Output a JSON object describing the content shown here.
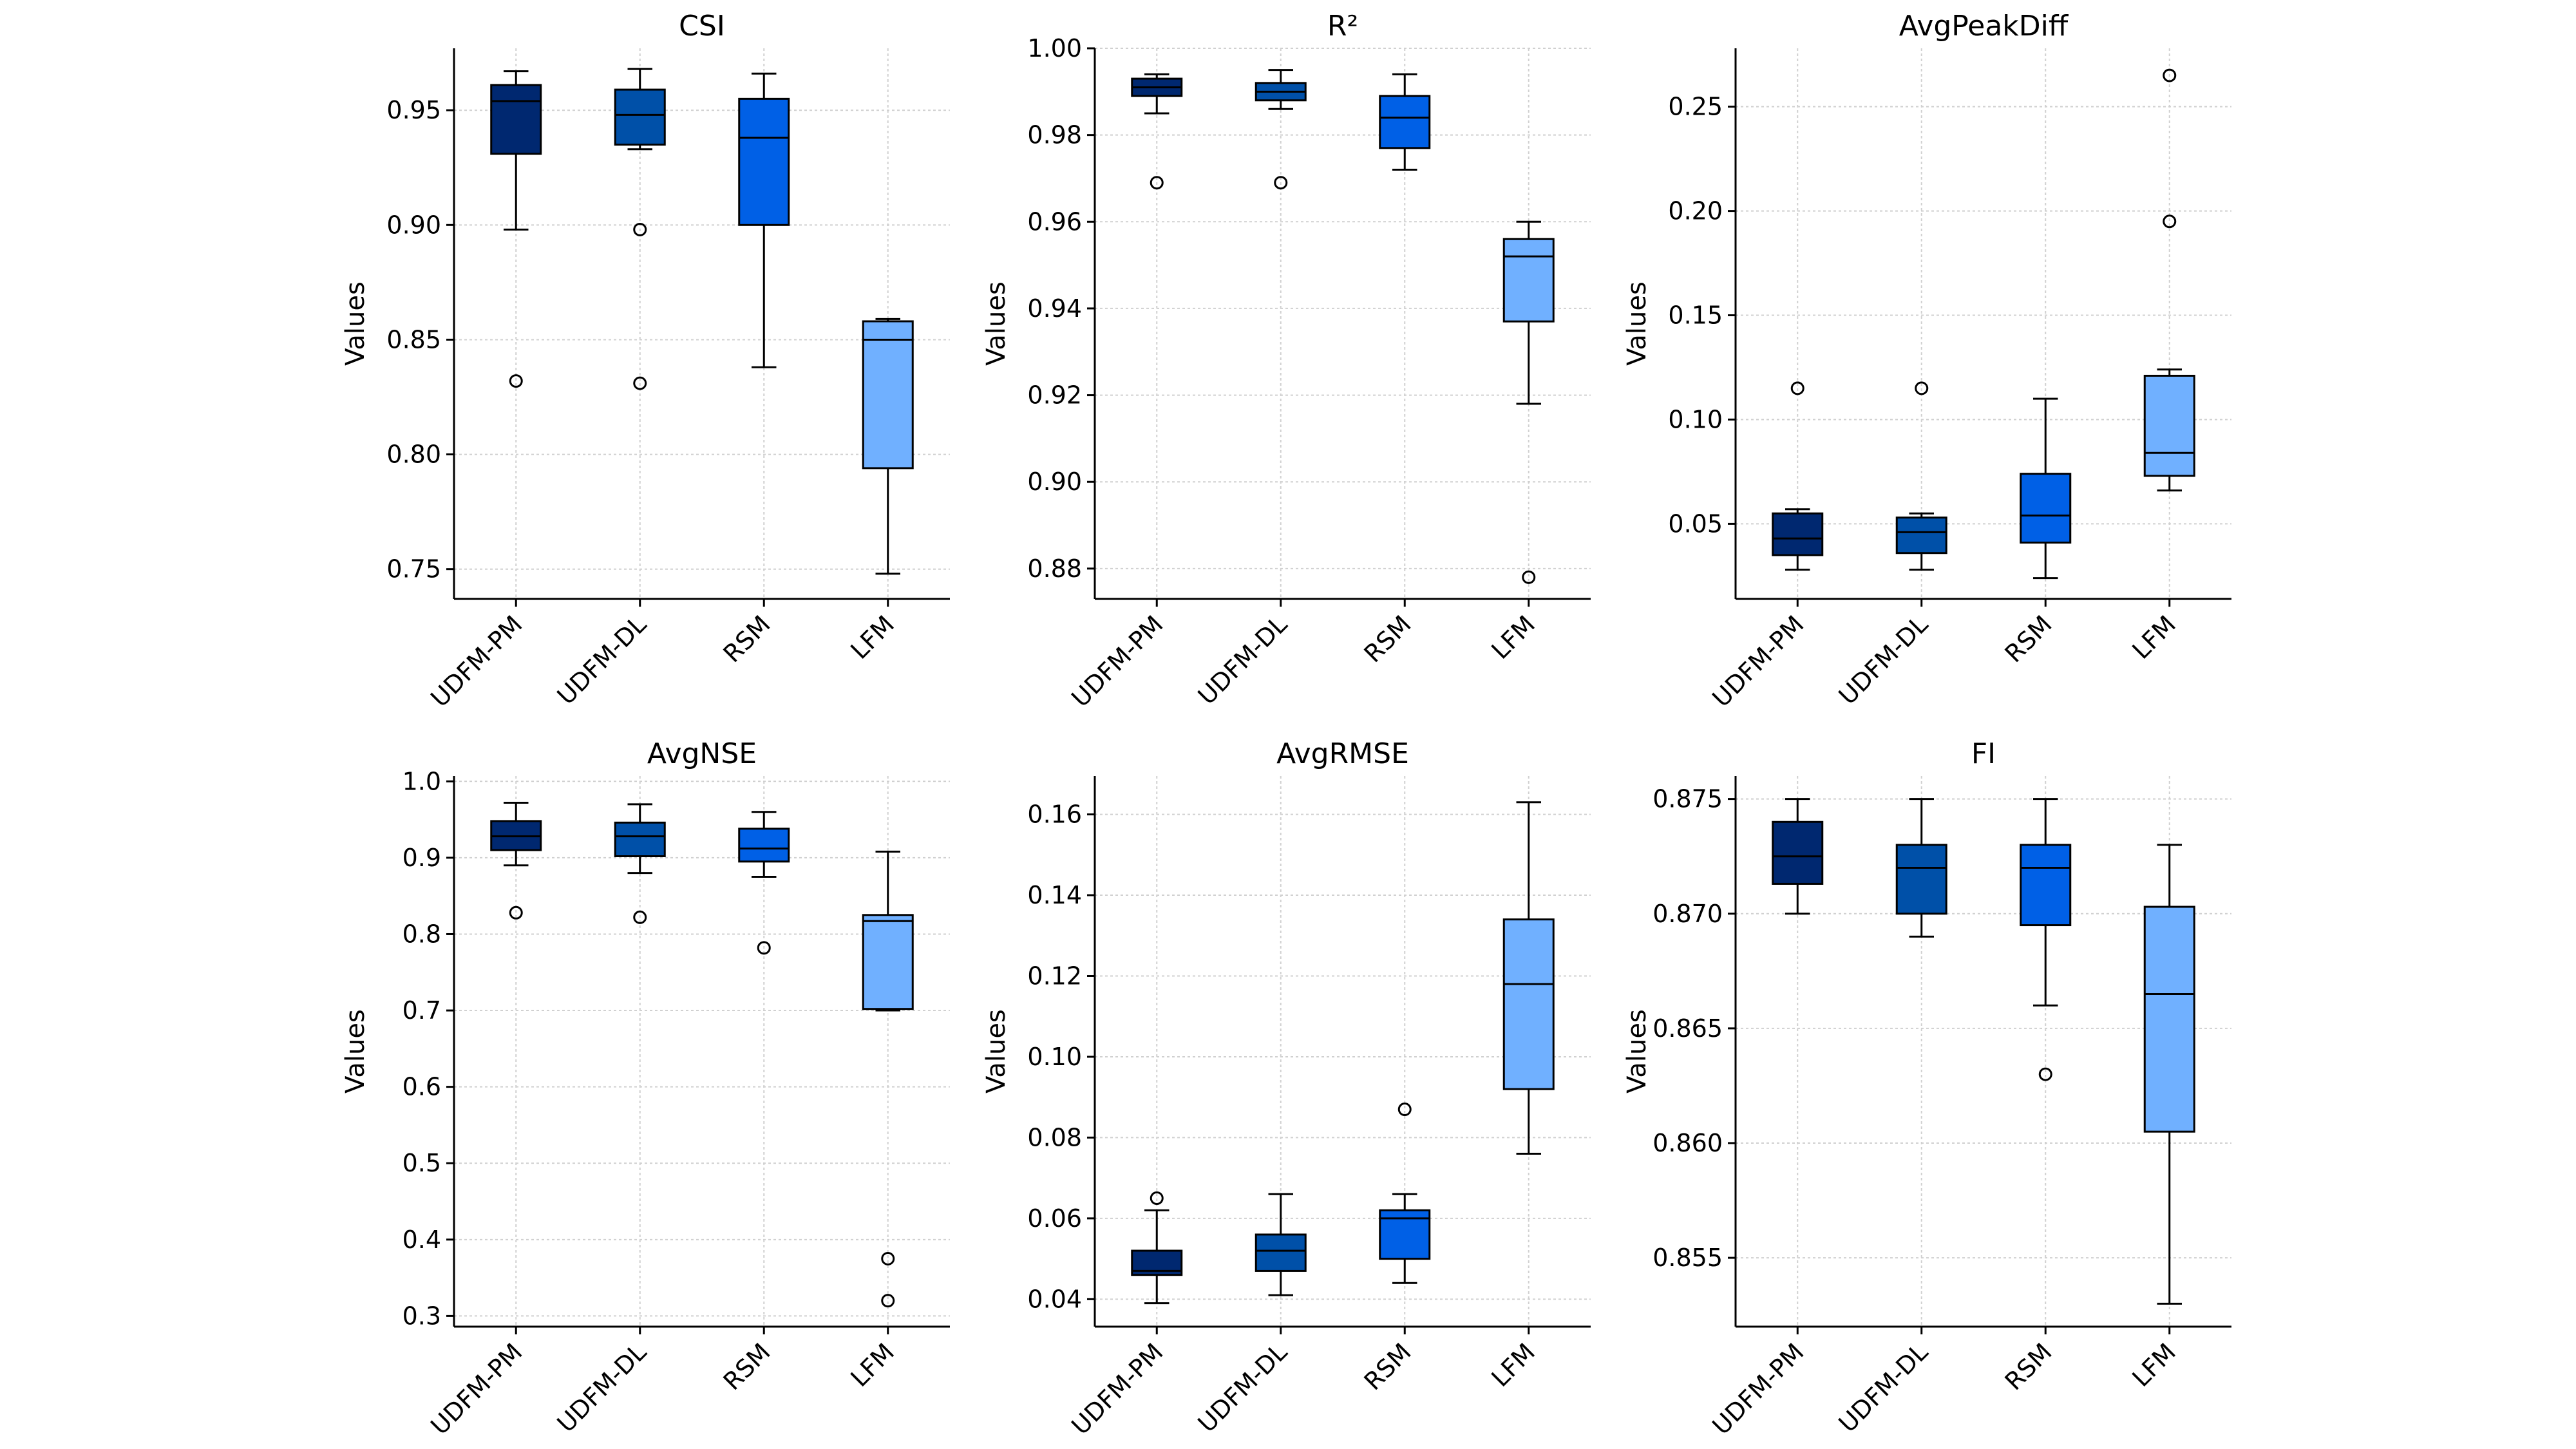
{
  "chart_data": [
    {
      "type": "box",
      "title": "CSI",
      "ylabel": "Values",
      "categories": [
        "UDFM-PM",
        "UDFM-DL",
        "RSM",
        "LFM"
      ],
      "colors": [
        "#002870",
        "#0050A8",
        "#0060E6",
        "#70B0FF"
      ],
      "ylim": [
        0.737,
        0.977
      ],
      "yticks": [
        0.75,
        0.8,
        0.85,
        0.9,
        0.95
      ],
      "ytick_labels": [
        "0.75",
        "0.80",
        "0.85",
        "0.90",
        "0.95"
      ],
      "boxes": [
        {
          "whislo": 0.898,
          "q1": 0.931,
          "med": 0.954,
          "q3": 0.961,
          "whishi": 0.967,
          "fliers": [
            0.832
          ]
        },
        {
          "whislo": 0.933,
          "q1": 0.935,
          "med": 0.948,
          "q3": 0.959,
          "whishi": 0.968,
          "fliers": [
            0.898,
            0.831
          ]
        },
        {
          "whislo": 0.838,
          "q1": 0.9,
          "med": 0.938,
          "q3": 0.955,
          "whishi": 0.966,
          "fliers": []
        },
        {
          "whislo": 0.748,
          "q1": 0.794,
          "med": 0.85,
          "q3": 0.858,
          "whishi": 0.859,
          "fliers": []
        }
      ]
    },
    {
      "type": "box",
      "title": "R²",
      "ylabel": "Values",
      "categories": [
        "UDFM-PM",
        "UDFM-DL",
        "RSM",
        "LFM"
      ],
      "colors": [
        "#002870",
        "#0050A8",
        "#0060E6",
        "#70B0FF"
      ],
      "ylim": [
        0.873,
        1.0
      ],
      "yticks": [
        0.88,
        0.9,
        0.92,
        0.94,
        0.96,
        0.98,
        1.0
      ],
      "ytick_labels": [
        "0.88",
        "0.90",
        "0.92",
        "0.94",
        "0.96",
        "0.98",
        "1.00"
      ],
      "boxes": [
        {
          "whislo": 0.985,
          "q1": 0.989,
          "med": 0.991,
          "q3": 0.993,
          "whishi": 0.994,
          "fliers": [
            0.969
          ]
        },
        {
          "whislo": 0.986,
          "q1": 0.988,
          "med": 0.99,
          "q3": 0.992,
          "whishi": 0.995,
          "fliers": [
            0.969
          ]
        },
        {
          "whislo": 0.972,
          "q1": 0.977,
          "med": 0.984,
          "q3": 0.989,
          "whishi": 0.994,
          "fliers": []
        },
        {
          "whislo": 0.918,
          "q1": 0.937,
          "med": 0.952,
          "q3": 0.956,
          "whishi": 0.96,
          "fliers": [
            0.878
          ]
        }
      ]
    },
    {
      "type": "box",
      "title": "AvgPeakDiff",
      "ylabel": "Values",
      "categories": [
        "UDFM-PM",
        "UDFM-DL",
        "RSM",
        "LFM"
      ],
      "colors": [
        "#002870",
        "#0050A8",
        "#0060E6",
        "#70B0FF"
      ],
      "ylim": [
        0.014,
        0.278
      ],
      "yticks": [
        0.05,
        0.1,
        0.15,
        0.2,
        0.25
      ],
      "ytick_labels": [
        "0.05",
        "0.10",
        "0.15",
        "0.20",
        "0.25"
      ],
      "boxes": [
        {
          "whislo": 0.028,
          "q1": 0.035,
          "med": 0.043,
          "q3": 0.055,
          "whishi": 0.057,
          "fliers": [
            0.115
          ]
        },
        {
          "whislo": 0.028,
          "q1": 0.036,
          "med": 0.046,
          "q3": 0.053,
          "whishi": 0.055,
          "fliers": [
            0.115
          ]
        },
        {
          "whislo": 0.024,
          "q1": 0.041,
          "med": 0.054,
          "q3": 0.074,
          "whishi": 0.11,
          "fliers": []
        },
        {
          "whislo": 0.066,
          "q1": 0.073,
          "med": 0.084,
          "q3": 0.121,
          "whishi": 0.124,
          "fliers": [
            0.195,
            0.265
          ]
        }
      ]
    },
    {
      "type": "box",
      "title": "AvgNSE",
      "ylabel": "Values",
      "categories": [
        "UDFM-PM",
        "UDFM-DL",
        "RSM",
        "LFM"
      ],
      "colors": [
        "#002870",
        "#0050A8",
        "#0060E6",
        "#70B0FF"
      ],
      "ylim": [
        0.286,
        1.007
      ],
      "yticks": [
        0.3,
        0.4,
        0.5,
        0.6,
        0.7,
        0.8,
        0.9,
        1.0
      ],
      "ytick_labels": [
        "0.3",
        "0.4",
        "0.5",
        "0.6",
        "0.7",
        "0.8",
        "0.9",
        "1.0"
      ],
      "boxes": [
        {
          "whislo": 0.89,
          "q1": 0.91,
          "med": 0.928,
          "q3": 0.948,
          "whishi": 0.972,
          "fliers": [
            0.828
          ]
        },
        {
          "whislo": 0.88,
          "q1": 0.902,
          "med": 0.928,
          "q3": 0.946,
          "whishi": 0.97,
          "fliers": [
            0.822
          ]
        },
        {
          "whislo": 0.875,
          "q1": 0.895,
          "med": 0.912,
          "q3": 0.938,
          "whishi": 0.96,
          "fliers": [
            0.782
          ]
        },
        {
          "whislo": 0.7,
          "q1": 0.702,
          "med": 0.817,
          "q3": 0.825,
          "whishi": 0.908,
          "fliers": [
            0.375,
            0.32
          ]
        }
      ]
    },
    {
      "type": "box",
      "title": "AvgRMSE",
      "ylabel": "Values",
      "categories": [
        "UDFM-PM",
        "UDFM-DL",
        "RSM",
        "LFM"
      ],
      "colors": [
        "#002870",
        "#0050A8",
        "#0060E6",
        "#70B0FF"
      ],
      "ylim": [
        0.0332,
        0.1695
      ],
      "yticks": [
        0.04,
        0.06,
        0.08,
        0.1,
        0.12,
        0.14,
        0.16
      ],
      "ytick_labels": [
        "0.04",
        "0.06",
        "0.08",
        "0.10",
        "0.12",
        "0.14",
        "0.16"
      ],
      "boxes": [
        {
          "whislo": 0.039,
          "q1": 0.046,
          "med": 0.047,
          "q3": 0.052,
          "whishi": 0.062,
          "fliers": [
            0.065
          ]
        },
        {
          "whislo": 0.041,
          "q1": 0.047,
          "med": 0.052,
          "q3": 0.056,
          "whishi": 0.066,
          "fliers": []
        },
        {
          "whislo": 0.044,
          "q1": 0.05,
          "med": 0.06,
          "q3": 0.062,
          "whishi": 0.066,
          "fliers": [
            0.087
          ]
        },
        {
          "whislo": 0.076,
          "q1": 0.092,
          "med": 0.118,
          "q3": 0.134,
          "whishi": 0.163,
          "fliers": []
        }
      ]
    },
    {
      "type": "box",
      "title": "FI",
      "ylabel": "Values",
      "categories": [
        "UDFM-PM",
        "UDFM-DL",
        "RSM",
        "LFM"
      ],
      "colors": [
        "#002870",
        "#0050A8",
        "#0060E6",
        "#70B0FF"
      ],
      "ylim": [
        0.852,
        0.876
      ],
      "yticks": [
        0.855,
        0.86,
        0.865,
        0.87,
        0.875
      ],
      "ytick_labels": [
        "0.855",
        "0.860",
        "0.865",
        "0.870",
        "0.875"
      ],
      "boxes": [
        {
          "whislo": 0.87,
          "q1": 0.8713,
          "med": 0.8725,
          "q3": 0.874,
          "whishi": 0.875,
          "fliers": []
        },
        {
          "whislo": 0.869,
          "q1": 0.87,
          "med": 0.872,
          "q3": 0.873,
          "whishi": 0.875,
          "fliers": []
        },
        {
          "whislo": 0.866,
          "q1": 0.8695,
          "med": 0.872,
          "q3": 0.873,
          "whishi": 0.875,
          "fliers": [
            0.863
          ]
        },
        {
          "whislo": 0.853,
          "q1": 0.8605,
          "med": 0.8665,
          "q3": 0.8703,
          "whishi": 0.873,
          "fliers": []
        }
      ]
    }
  ]
}
